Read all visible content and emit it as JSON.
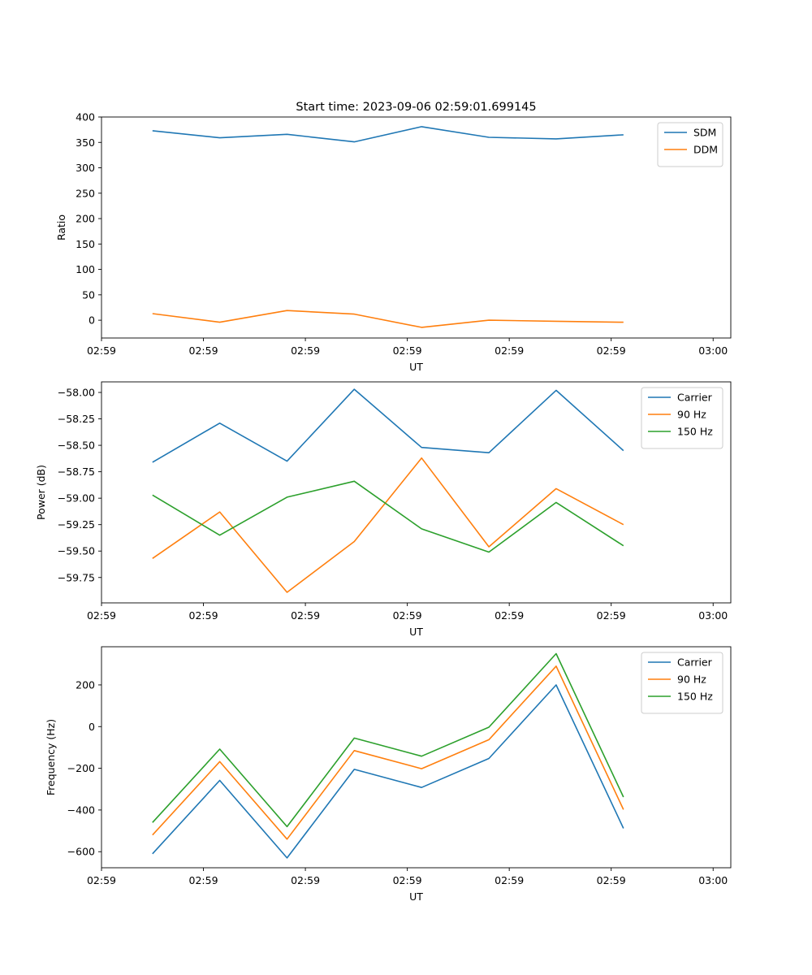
{
  "figure_title": "Start time: 2023-09-06 02:59:01.699145",
  "colors": {
    "blue": "#1f77b4",
    "orange": "#ff7f0e",
    "green": "#2ca02c"
  },
  "chart_data": [
    {
      "type": "line",
      "title": "Start time: 2023-09-06 02:59:01.699145",
      "xlabel": "UT",
      "ylabel": "Ratio",
      "xlim": [
        0,
        9.26
      ],
      "ylim": [
        -35,
        400
      ],
      "x_ticks": [
        0,
        1.5,
        3,
        4.5,
        6,
        7.5,
        9
      ],
      "x_tick_labels": [
        "02:59",
        "02:59",
        "02:59",
        "02:59",
        "02:59",
        "02:59",
        "03:00"
      ],
      "y_ticks": [
        0,
        50,
        100,
        150,
        200,
        250,
        300,
        350,
        400
      ],
      "y_tick_labels": [
        "0",
        "50",
        "100",
        "150",
        "200",
        "250",
        "300",
        "350",
        "400"
      ],
      "legend_position": "top-right",
      "x": [
        0.75,
        1.74,
        2.73,
        3.72,
        4.71,
        5.7,
        6.69,
        7.68
      ],
      "series": [
        {
          "name": "SDM",
          "color": "#1f77b4",
          "values": [
            373,
            359,
            366,
            351,
            381,
            360,
            357,
            365
          ]
        },
        {
          "name": "DDM",
          "color": "#ff7f0e",
          "values": [
            13,
            -4,
            19,
            12,
            -14,
            0,
            -2,
            -4
          ]
        }
      ]
    },
    {
      "type": "line",
      "title": "",
      "xlabel": "UT",
      "ylabel": "Power (dB)",
      "xlim": [
        0,
        9.26
      ],
      "ylim": [
        -59.99,
        -57.9
      ],
      "x_ticks": [
        0,
        1.5,
        3,
        4.5,
        6,
        7.5,
        9
      ],
      "x_tick_labels": [
        "02:59",
        "02:59",
        "02:59",
        "02:59",
        "02:59",
        "02:59",
        "03:00"
      ],
      "y_ticks": [
        -59.75,
        -59.5,
        -59.25,
        -59.0,
        -58.75,
        -58.5,
        -58.25,
        -58.0
      ],
      "y_tick_labels": [
        "−59.75",
        "−59.50",
        "−59.25",
        "−59.00",
        "−58.75",
        "−58.50",
        "−58.25",
        "−58.00"
      ],
      "legend_position": "top-right",
      "x": [
        0.75,
        1.74,
        2.73,
        3.72,
        4.71,
        5.7,
        6.69,
        7.68
      ],
      "series": [
        {
          "name": "Carrier",
          "color": "#1f77b4",
          "values": [
            -58.66,
            -58.29,
            -58.65,
            -57.97,
            -58.52,
            -58.57,
            -57.98,
            -58.55
          ]
        },
        {
          "name": "90 Hz",
          "color": "#ff7f0e",
          "values": [
            -59.57,
            -59.13,
            -59.89,
            -59.41,
            -58.62,
            -59.46,
            -58.91,
            -59.25
          ]
        },
        {
          "name": "150 Hz",
          "color": "#2ca02c",
          "values": [
            -58.97,
            -59.35,
            -58.99,
            -58.84,
            -59.29,
            -59.51,
            -59.04,
            -59.45
          ]
        }
      ]
    },
    {
      "type": "line",
      "title": "",
      "xlabel": "UT",
      "ylabel": "Frequency (Hz)",
      "xlim": [
        0,
        9.26
      ],
      "ylim": [
        -677,
        383
      ],
      "x_ticks": [
        0,
        1.5,
        3,
        4.5,
        6,
        7.5,
        9
      ],
      "x_tick_labels": [
        "02:59",
        "02:59",
        "02:59",
        "02:59",
        "02:59",
        "02:59",
        "03:00"
      ],
      "y_ticks": [
        -600,
        -400,
        -200,
        0,
        200
      ],
      "y_tick_labels": [
        "−600",
        "−400",
        "−200",
        "0",
        "200"
      ],
      "legend_position": "top-right",
      "x": [
        0.75,
        1.74,
        2.73,
        3.72,
        4.71,
        5.7,
        6.69,
        7.68
      ],
      "series": [
        {
          "name": "Carrier",
          "color": "#1f77b4",
          "values": [
            -610,
            -258,
            -630,
            -205,
            -292,
            -153,
            200,
            -488
          ]
        },
        {
          "name": "90 Hz",
          "color": "#ff7f0e",
          "values": [
            -520,
            -168,
            -540,
            -115,
            -202,
            -63,
            290,
            -398
          ]
        },
        {
          "name": "150 Hz",
          "color": "#2ca02c",
          "values": [
            -460,
            -108,
            -480,
            -55,
            -142,
            -3,
            350,
            -338
          ]
        }
      ]
    }
  ]
}
